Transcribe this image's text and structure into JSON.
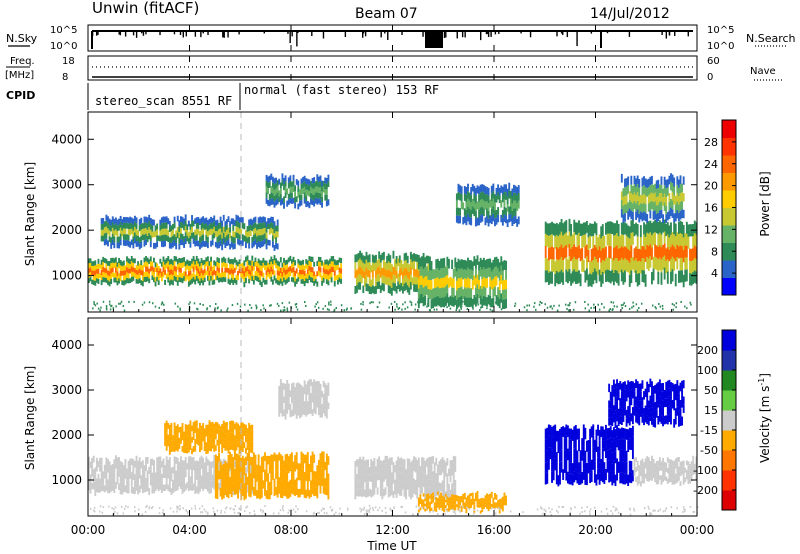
{
  "header": {
    "station": "Unwin (fitACF)",
    "beam": "Beam 07",
    "date": "14/Jul/2012"
  },
  "sky_panel": {
    "left_label": "N.Sky",
    "right_label": "N.Search",
    "left_ticks": [
      "10^5",
      "10^0"
    ],
    "right_ticks": [
      "10^5",
      "10^0"
    ]
  },
  "freq_panel": {
    "left_label": "Freq.",
    "left_unit": "[MHz]",
    "left_ticks": [
      "18",
      "8"
    ],
    "right_label": "Nave",
    "right_ticks": [
      "60",
      "0"
    ]
  },
  "cpid_panel": {
    "label": "CPID",
    "segments": [
      "stereo_scan 8551 RF",
      "normal (fast stereo) 153 RF"
    ]
  },
  "x_axis": {
    "label": "Time UT",
    "ticks": [
      "00:00",
      "04:00",
      "08:00",
      "12:00",
      "16:00",
      "20:00",
      "00:00"
    ]
  },
  "power_panel": {
    "ylabel": "Slant Range [km]",
    "yticks": [
      "4000",
      "3000",
      "2000",
      "1000"
    ],
    "colorbar_label": "Power [dB]",
    "colorbar_ticks": [
      "28",
      "24",
      "20",
      "16",
      "12",
      "8",
      "4"
    ],
    "colors": [
      "#0000ff",
      "#2a64c8",
      "#2e8b57",
      "#66b266",
      "#c8c832",
      "#ffcc00",
      "#ff9900",
      "#ff6600",
      "#ff3300",
      "#ee0000"
    ]
  },
  "velocity_panel": {
    "ylabel": "Slant Range [km]",
    "yticks": [
      "4000",
      "3000",
      "2000",
      "1000"
    ],
    "colorbar_label": "Velocity [m s",
    "colorbar_sup": "-1",
    "colorbar_label_end": "]",
    "colorbar_ticks": [
      "200",
      "100",
      "50",
      "15",
      "-15",
      "-50",
      "-100",
      "-200"
    ],
    "colors": [
      "#0000dd",
      "#2233aa",
      "#228822",
      "#66cc44",
      "#cccccc",
      "#ffaa00",
      "#ff7700",
      "#ff3300",
      "#dd0000"
    ]
  },
  "chart_data": [
    {
      "type": "heatmap",
      "title": "Power",
      "xlabel": "Time UT",
      "ylabel": "Slant Range [km]",
      "xlim": [
        0,
        24
      ],
      "ylim": [
        200,
        4600
      ],
      "colorbar": {
        "label": "Power [dB]",
        "range": [
          0,
          30
        ],
        "ticks": [
          4,
          8,
          12,
          16,
          20,
          24,
          28
        ]
      },
      "regions": [
        {
          "t_start": 0.0,
          "t_end": 10.0,
          "range_km": [
            800,
            1400
          ],
          "power_db": 20
        },
        {
          "t_start": 0.5,
          "t_end": 7.5,
          "range_km": [
            1600,
            2300
          ],
          "power_db": 10
        },
        {
          "t_start": 7.0,
          "t_end": 9.5,
          "range_km": [
            2500,
            3200
          ],
          "power_db": 8
        },
        {
          "t_start": 10.5,
          "t_end": 13.5,
          "range_km": [
            600,
            1500
          ],
          "power_db": 16
        },
        {
          "t_start": 13.0,
          "t_end": 16.5,
          "range_km": [
            300,
            1400
          ],
          "power_db": 14
        },
        {
          "t_start": 14.5,
          "t_end": 17.0,
          "range_km": [
            2100,
            3000
          ],
          "power_db": 8
        },
        {
          "t_start": 18.0,
          "t_end": 24.0,
          "range_km": [
            800,
            2200
          ],
          "power_db": 18
        },
        {
          "t_start": 21.0,
          "t_end": 23.5,
          "range_km": [
            2200,
            3200
          ],
          "power_db": 12
        }
      ]
    },
    {
      "type": "heatmap",
      "title": "Velocity",
      "xlabel": "Time UT",
      "ylabel": "Slant Range [km]",
      "xlim": [
        0,
        24
      ],
      "ylim": [
        200,
        4600
      ],
      "colorbar": {
        "label": "Velocity [m s-1]",
        "range": [
          -250,
          250
        ],
        "ticks": [
          -200,
          -100,
          -50,
          -15,
          15,
          50,
          100,
          200
        ]
      },
      "regions": [
        {
          "t_start": 0.0,
          "t_end": 6.5,
          "range_km": [
            700,
            1500
          ],
          "velocity": 0
        },
        {
          "t_start": 3.0,
          "t_end": 6.5,
          "range_km": [
            1600,
            2300
          ],
          "velocity": -40
        },
        {
          "t_start": 5.0,
          "t_end": 9.5,
          "range_km": [
            600,
            1600
          ],
          "velocity": -45
        },
        {
          "t_start": 7.5,
          "t_end": 9.5,
          "range_km": [
            2400,
            3200
          ],
          "velocity": 0
        },
        {
          "t_start": 10.5,
          "t_end": 14.5,
          "range_km": [
            600,
            1500
          ],
          "velocity": 0
        },
        {
          "t_start": 13.0,
          "t_end": 16.5,
          "range_km": [
            300,
            700
          ],
          "velocity": -40
        },
        {
          "t_start": 18.0,
          "t_end": 21.5,
          "range_km": [
            900,
            2200
          ],
          "velocity": 250
        },
        {
          "t_start": 20.5,
          "t_end": 23.5,
          "range_km": [
            2200,
            3200
          ],
          "velocity": 220
        },
        {
          "t_start": 21.5,
          "t_end": 24.0,
          "range_km": [
            900,
            1500
          ],
          "velocity": 0
        }
      ]
    }
  ]
}
